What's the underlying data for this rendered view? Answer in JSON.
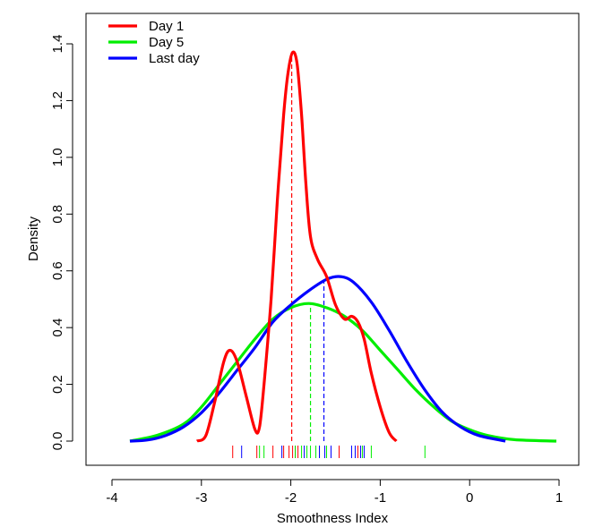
{
  "chart_data": {
    "type": "line",
    "title": "",
    "xlabel": "Smoothness Index",
    "ylabel": "Density",
    "xlim": [
      -4,
      1
    ],
    "ylim": [
      0,
      1.4
    ],
    "x_ticks": [
      "-4",
      "-3",
      "-2",
      "-1",
      "0",
      "1"
    ],
    "y_ticks": [
      "0.0",
      "0.2",
      "0.4",
      "0.6",
      "0.8",
      "1.0",
      "1.2",
      "1.4"
    ],
    "grid": false,
    "legend_position": "top-left",
    "series": [
      {
        "name": "Day 1",
        "color": "#ff0000",
        "points": [
          [
            -3.05,
            0.0
          ],
          [
            -2.95,
            0.02
          ],
          [
            -2.85,
            0.14
          ],
          [
            -2.75,
            0.28
          ],
          [
            -2.68,
            0.32
          ],
          [
            -2.6,
            0.28
          ],
          [
            -2.5,
            0.16
          ],
          [
            -2.4,
            0.04
          ],
          [
            -2.35,
            0.05
          ],
          [
            -2.3,
            0.2
          ],
          [
            -2.22,
            0.5
          ],
          [
            -2.15,
            0.85
          ],
          [
            -2.08,
            1.15
          ],
          [
            -2.03,
            1.3
          ],
          [
            -1.98,
            1.37
          ],
          [
            -1.93,
            1.33
          ],
          [
            -1.88,
            1.15
          ],
          [
            -1.83,
            0.9
          ],
          [
            -1.78,
            0.72
          ],
          [
            -1.7,
            0.64
          ],
          [
            -1.6,
            0.58
          ],
          [
            -1.5,
            0.48
          ],
          [
            -1.4,
            0.43
          ],
          [
            -1.32,
            0.44
          ],
          [
            -1.25,
            0.42
          ],
          [
            -1.18,
            0.36
          ],
          [
            -1.1,
            0.24
          ],
          [
            -1.0,
            0.12
          ],
          [
            -0.9,
            0.03
          ],
          [
            -0.82,
            0.0
          ]
        ],
        "mean_line": {
          "x": -1.99,
          "y": 1.37
        },
        "rug": [
          -2.65,
          -2.38,
          -2.2,
          -2.08,
          -2.02,
          -1.98,
          -1.95,
          -1.92,
          -1.68,
          -1.46,
          -1.25
        ]
      },
      {
        "name": "Day 5",
        "color": "#00ee00",
        "points": [
          [
            -3.8,
            0.0
          ],
          [
            -3.5,
            0.02
          ],
          [
            -3.2,
            0.06
          ],
          [
            -3.0,
            0.12
          ],
          [
            -2.8,
            0.2
          ],
          [
            -2.6,
            0.28
          ],
          [
            -2.4,
            0.36
          ],
          [
            -2.2,
            0.43
          ],
          [
            -2.0,
            0.47
          ],
          [
            -1.8,
            0.485
          ],
          [
            -1.6,
            0.47
          ],
          [
            -1.4,
            0.44
          ],
          [
            -1.2,
            0.39
          ],
          [
            -1.0,
            0.32
          ],
          [
            -0.8,
            0.25
          ],
          [
            -0.6,
            0.18
          ],
          [
            -0.4,
            0.12
          ],
          [
            -0.2,
            0.07
          ],
          [
            0.0,
            0.04
          ],
          [
            0.2,
            0.02
          ],
          [
            0.5,
            0.005
          ],
          [
            0.97,
            0.0
          ]
        ],
        "mean_line": {
          "x": -1.78,
          "y": 0.48
        },
        "rug": [
          -2.35,
          -2.3,
          -1.95,
          -1.88,
          -1.82,
          -1.78,
          -1.72,
          -1.6,
          -1.2,
          -1.1,
          -0.5
        ]
      },
      {
        "name": "Last day",
        "color": "#0000ff",
        "points": [
          [
            -3.8,
            0.0
          ],
          [
            -3.6,
            0.004
          ],
          [
            -3.4,
            0.02
          ],
          [
            -3.2,
            0.05
          ],
          [
            -3.0,
            0.1
          ],
          [
            -2.8,
            0.17
          ],
          [
            -2.6,
            0.25
          ],
          [
            -2.4,
            0.33
          ],
          [
            -2.2,
            0.42
          ],
          [
            -2.0,
            0.48
          ],
          [
            -1.8,
            0.53
          ],
          [
            -1.6,
            0.57
          ],
          [
            -1.45,
            0.58
          ],
          [
            -1.3,
            0.56
          ],
          [
            -1.1,
            0.49
          ],
          [
            -0.9,
            0.39
          ],
          [
            -0.7,
            0.28
          ],
          [
            -0.5,
            0.18
          ],
          [
            -0.3,
            0.1
          ],
          [
            -0.1,
            0.05
          ],
          [
            0.1,
            0.02
          ],
          [
            0.4,
            0.0
          ]
        ],
        "mean_line": {
          "x": -1.63,
          "y": 0.57
        },
        "rug": [
          -2.55,
          -2.1,
          -1.85,
          -1.68,
          -1.62,
          -1.55,
          -1.32,
          -1.28,
          -1.22,
          -1.18
        ]
      }
    ]
  }
}
